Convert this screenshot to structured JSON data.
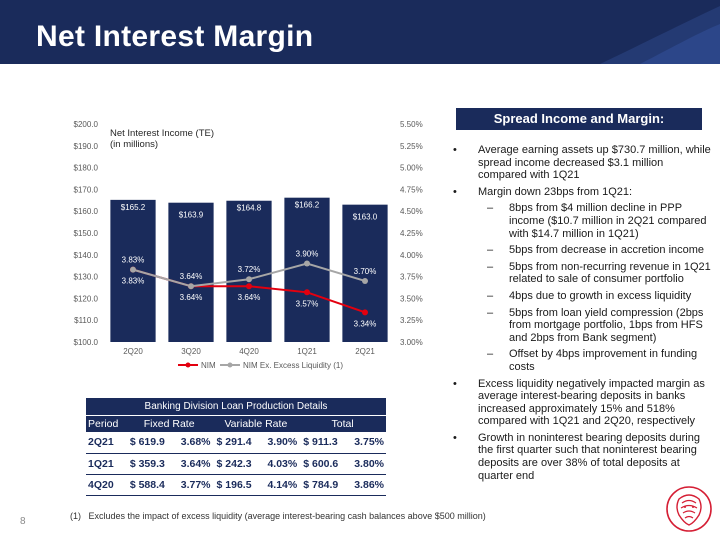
{
  "page": {
    "title": "Net Interest Margin",
    "number": "8"
  },
  "chart_data": {
    "type": "bar",
    "title": "Net Interest Income (TE) (in millions)",
    "title_lines": [
      "Net Interest Income (TE)",
      "(in millions)"
    ],
    "categories": [
      "2Q20",
      "3Q20",
      "4Q20",
      "1Q21",
      "2Q21"
    ],
    "series": [
      {
        "name": "Net Interest Income (TE)",
        "axis": "left",
        "type": "bar",
        "values": [
          165.2,
          163.9,
          164.8,
          166.2,
          163.0
        ],
        "labels": [
          "$165.2",
          "$163.9",
          "$164.8",
          "$166.2",
          "$163.0"
        ],
        "color": "#1a2b5b"
      },
      {
        "name": "NIM",
        "axis": "right",
        "type": "line",
        "values": [
          3.83,
          3.64,
          3.64,
          3.57,
          3.34
        ],
        "labels": [
          "3.83%",
          "3.64%",
          "3.64%",
          "3.57%",
          "3.34%"
        ],
        "color": "#e3000f"
      },
      {
        "name": "NIM Ex. Excess Liquidity (1)",
        "axis": "right",
        "type": "line",
        "values": [
          3.83,
          3.64,
          3.72,
          3.9,
          3.7
        ],
        "labels": [
          "3.83%",
          "3.64%",
          "3.72%",
          "3.90%",
          "3.70%"
        ],
        "color": "#a6a6a6"
      }
    ],
    "y_left": {
      "range": [
        100,
        200
      ],
      "ticks": [
        "$100.0",
        "$110.0",
        "$120.0",
        "$130.0",
        "$140.0",
        "$150.0",
        "$160.0",
        "$170.0",
        "$180.0",
        "$190.0",
        "$200.0"
      ]
    },
    "y_right": {
      "range": [
        3.0,
        5.5
      ],
      "ticks": [
        "3.00%",
        "3.25%",
        "3.50%",
        "3.75%",
        "4.00%",
        "4.25%",
        "4.50%",
        "4.75%",
        "5.00%",
        "5.25%",
        "5.50%"
      ]
    },
    "legend": [
      "NIM",
      "NIM Ex. Excess Liquidity (1)"
    ],
    "legend_position": "bottom",
    "grid": false
  },
  "panel": {
    "title": "Spread Income and Margin:",
    "bullets": [
      {
        "level": 1,
        "marker": "•",
        "text": "Average earning assets up $730.7 million, while spread income decreased $3.1 million compared with 1Q21"
      },
      {
        "level": 1,
        "marker": "•",
        "text": "Margin down 23bps from 1Q21:"
      },
      {
        "level": 2,
        "marker": "–",
        "text": "8bps from $4 million decline in PPP income ($10.7 million in 2Q21 compared with $14.7 million in 1Q21)"
      },
      {
        "level": 2,
        "marker": "–",
        "text": "5bps from decrease in accretion income"
      },
      {
        "level": 2,
        "marker": "–",
        "text": "5bps from non-recurring revenue in 1Q21 related to sale of consumer portfolio"
      },
      {
        "level": 2,
        "marker": "–",
        "text": "4bps due to growth in excess liquidity"
      },
      {
        "level": 2,
        "marker": "–",
        "text": "5bps from loan yield compression (2bps from mortgage portfolio, 1bps from HFS and 2bps from Bank segment)"
      },
      {
        "level": 2,
        "marker": "–",
        "text": "Offset by 4bps improvement in funding costs"
      },
      {
        "level": 1,
        "marker": "•",
        "text": "Excess liquidity negatively impacted margin as average interest-bearing deposits in banks increased approximately 15% and 518% compared with 1Q21 and 2Q20, respectively"
      },
      {
        "level": 1,
        "marker": "•",
        "text": "Growth in noninterest bearing deposits during the first quarter such that noninterest bearing deposits are over 38% of total deposits at quarter end"
      }
    ]
  },
  "loan_table": {
    "caption": "Banking Division Loan Production Details",
    "headers": [
      "Period",
      "Fixed Rate",
      "Variable Rate",
      "Total"
    ],
    "rows": [
      {
        "period": "2Q21",
        "fixed": "$ 619.9",
        "fixed_rate": "3.68%",
        "variable": "$ 291.4",
        "variable_rate": "3.90%",
        "total": "$ 911.3",
        "total_rate": "3.75%"
      },
      {
        "period": "1Q21",
        "fixed": "$ 359.3",
        "fixed_rate": "3.64%",
        "variable": "$ 242.3",
        "variable_rate": "4.03%",
        "total": "$ 600.6",
        "total_rate": "3.80%"
      },
      {
        "period": "4Q20",
        "fixed": "$ 588.4",
        "fixed_rate": "3.77%",
        "variable": "$ 196.5",
        "variable_rate": "4.14%",
        "total": "$ 784.9",
        "total_rate": "3.86%"
      }
    ]
  },
  "footnote": {
    "marker": "(1)",
    "text": "Excludes the impact of excess liquidity (average interest-bearing cash balances above $500 million)"
  },
  "colors": {
    "navy": "#1a2b5b",
    "red": "#e3000f",
    "gray": "#a6a6a6",
    "logo_red": "#d51f35"
  },
  "icons": {
    "logo": "lion-head-logo"
  }
}
